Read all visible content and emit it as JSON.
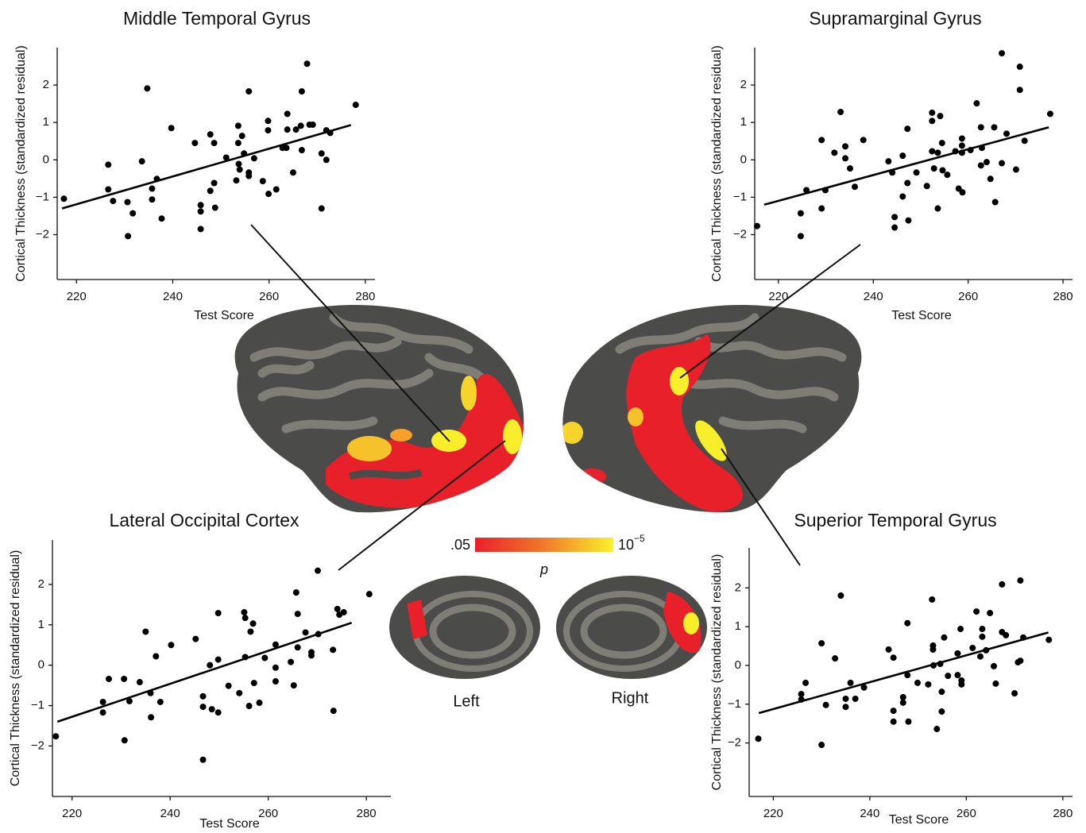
{
  "chart_data": [
    {
      "type": "scatter",
      "title": "Middle Temporal Gyrus",
      "x_label": "Test Score",
      "y_label": "Cortical Thickness (standardized residual)",
      "color": "#000000",
      "xlim": [
        216,
        282
      ],
      "ylim": [
        -3.2,
        3.0
      ],
      "xticks": [
        220,
        240,
        260,
        280
      ],
      "yticks": [
        {
          "value": -2,
          "label": "−2"
        },
        {
          "value": -1,
          "label": "−1"
        },
        0,
        1,
        2
      ],
      "x": [
        217.4,
        226.6,
        226.6,
        227.6,
        230.6,
        230.7,
        231.7,
        233.6,
        234.7,
        235.7,
        235.7,
        236.7,
        237.7,
        239.7,
        244.6,
        245.8,
        245.8,
        245.8,
        247.8,
        247.8,
        248.6,
        248.6,
        248.8,
        251.1,
        253.2,
        253.6,
        253.6,
        253.7,
        253.9,
        254.4,
        254.8,
        255.8,
        255.8,
        255.8,
        256.9,
        258.7,
        259.8,
        259.8,
        259.9,
        261.5,
        262.8,
        263.6,
        263.8,
        263.8,
        265.0,
        265.6,
        266.6,
        266.8,
        266.8,
        267.9,
        268.4,
        269.1,
        270.9,
        270.9,
        271.9,
        271.9,
        272.7,
        278.0
      ],
      "values": [
        -1.04,
        -0.13,
        -0.79,
        -1.1,
        -1.13,
        -2.04,
        -1.43,
        -0.04,
        1.91,
        -0.77,
        -1.06,
        -0.51,
        -1.57,
        0.85,
        0.45,
        -1.21,
        -1.38,
        -1.85,
        0.68,
        -0.83,
        0.45,
        -0.62,
        -1.28,
        0.06,
        -0.55,
        0.91,
        0.45,
        -0.11,
        -0.26,
        0.64,
        0.17,
        1.83,
        -0.34,
        -0.43,
        0.04,
        -0.57,
        1.04,
        0.79,
        -0.91,
        -0.79,
        0.32,
        0.32,
        1.23,
        0.81,
        -0.34,
        0.81,
        0.91,
        1.83,
        0.26,
        2.57,
        0.94,
        0.94,
        0.17,
        -1.3,
        0.0,
        0.79,
        0.72,
        1.47
      ],
      "fit": {
        "x": [
          217,
          277
        ],
        "values": [
          -1.3,
          0.93
        ]
      }
    },
    {
      "type": "scatter",
      "title": "Supramarginal Gyrus",
      "x_label": "Test Score",
      "y_label": "Cortical Thickness (standardized residual)",
      "color": "#000000",
      "xlim": [
        215,
        282
      ],
      "ylim": [
        -3.2,
        3.0
      ],
      "xticks": [
        220,
        240,
        260,
        280
      ],
      "yticks": [
        {
          "value": -2,
          "label": "−2"
        },
        {
          "value": -1,
          "label": "−1"
        },
        0,
        1,
        2
      ],
      "x": [
        215.5,
        224.7,
        224.7,
        225.9,
        229.1,
        229.1,
        229.9,
        231.8,
        233.1,
        234.1,
        234.1,
        235.1,
        236.1,
        237.9,
        243.2,
        244.0,
        244.5,
        244.5,
        246.2,
        246.2,
        247.2,
        247.2,
        247.4,
        249.1,
        251.3,
        252.4,
        252.4,
        252.4,
        252.8,
        253.6,
        253.6,
        254.1,
        254.5,
        254.6,
        255.6,
        257.3,
        258.0,
        258.7,
        258.7,
        258.7,
        258.8,
        260.5,
        261.8,
        262.7,
        262.7,
        262.9,
        263.9,
        264.7,
        265.5,
        265.7,
        267.1,
        267.1,
        268.1,
        270.1,
        270.9,
        270.9,
        271.9,
        277.3
      ],
      "values": [
        -1.77,
        -1.43,
        -2.04,
        -0.81,
        0.53,
        -1.3,
        -0.81,
        0.19,
        1.28,
        0.36,
        0.04,
        -0.23,
        -0.72,
        0.53,
        -0.04,
        -0.34,
        -1.53,
        -1.81,
        0.11,
        -0.98,
        0.83,
        -0.62,
        -1.62,
        -0.34,
        -0.7,
        1.26,
        1.04,
        0.23,
        -0.23,
        0.19,
        -1.3,
        1.17,
        0.45,
        -0.28,
        -0.4,
        0.23,
        -0.77,
        0.57,
        0.38,
        0.19,
        -0.87,
        0.26,
        1.51,
        0.87,
        -0.15,
        0.32,
        -0.06,
        -0.51,
        0.87,
        -1.13,
        2.85,
        -0.09,
        0.7,
        -0.26,
        2.49,
        1.87,
        0.51,
        1.23
      ],
      "fit": {
        "x": [
          217,
          277
        ],
        "values": [
          -1.2,
          0.87
        ]
      }
    },
    {
      "type": "scatter",
      "title": "Lateral Occipital Cortex",
      "x_label": "Test Score",
      "y_label": "Cortical Thickness (standardized residual)",
      "color": "#000000",
      "xlim": [
        216,
        285
      ],
      "ylim": [
        -3.25,
        3.1
      ],
      "xticks": [
        220,
        240,
        260,
        280
      ],
      "yticks": [
        {
          "value": -2,
          "label": "−2"
        },
        {
          "value": -1,
          "label": "−1"
        },
        0,
        1,
        2
      ],
      "x": [
        216.7,
        226.3,
        226.3,
        227.5,
        230.6,
        230.7,
        231.7,
        233.8,
        235.0,
        236.0,
        236.1,
        237.1,
        238.0,
        240.2,
        245.2,
        246.7,
        246.7,
        246.7,
        248.1,
        248.5,
        249.8,
        249.8,
        249.8,
        251.9,
        254.1,
        255.1,
        255.3,
        255.3,
        256.1,
        256.4,
        256.9,
        257.1,
        258.2,
        259.3,
        261.5,
        261.5,
        261.5,
        264.6,
        265.2,
        265.7,
        266.0,
        266.0,
        267.6,
        268.8,
        268.8,
        270.1,
        270.2,
        273.2,
        273.3,
        274.1,
        274.5,
        275.4,
        280.6
      ],
      "values": [
        -1.76,
        -0.91,
        -1.17,
        -0.34,
        -0.34,
        -1.86,
        -0.89,
        -0.42,
        0.83,
        -0.69,
        -1.29,
        0.22,
        -0.91,
        0.5,
        0.65,
        -0.77,
        -1.03,
        -2.34,
        0.0,
        -1.09,
        1.29,
        0.14,
        -1.17,
        -0.51,
        -0.69,
        1.31,
        1.17,
        0.2,
        -1.01,
        0.83,
        1.03,
        -0.44,
        -0.93,
        0.18,
        0.51,
        -0.06,
        -0.4,
        0.08,
        -0.5,
        1.8,
        1.27,
        0.44,
        0.81,
        0.32,
        0.24,
        2.34,
        0.77,
        0.38,
        -1.13,
        1.39,
        1.25,
        1.31,
        1.76
      ],
      "fit": {
        "x": [
          217,
          277
        ],
        "values": [
          -1.4,
          1.05
        ]
      }
    },
    {
      "type": "scatter",
      "title": "Superior Temporal Gyrus",
      "x_label": "Test Score",
      "y_label": "Cortical Thickness (standardized residual)",
      "color": "#000000",
      "xlim": [
        215,
        282
      ],
      "ylim": [
        -3.38,
        3.03
      ],
      "xticks": [
        220,
        240,
        260,
        280
      ],
      "yticks": [
        {
          "value": -2,
          "label": "−2"
        },
        {
          "value": -1,
          "label": "−1"
        },
        0,
        1,
        2
      ],
      "x": [
        216.9,
        225.8,
        225.8,
        226.7,
        230.0,
        230.0,
        230.9,
        232.8,
        234.0,
        235.0,
        235.0,
        236.0,
        237.0,
        238.8,
        243.9,
        244.9,
        244.9,
        244.9,
        246.9,
        246.9,
        247.8,
        247.8,
        248.0,
        249.9,
        252.1,
        252.9,
        253.1,
        253.1,
        253.2,
        253.9,
        254.6,
        254.9,
        254.9,
        255.4,
        256.2,
        258.2,
        258.2,
        258.8,
        259.0,
        259.0,
        261.3,
        262.1,
        262.9,
        263.3,
        263.3,
        264.1,
        264.9,
        265.7,
        266.1,
        267.4,
        267.4,
        268.2,
        270.0,
        270.7,
        271.2,
        271.2,
        271.8,
        277.1
      ],
      "values": [
        -1.89,
        -0.74,
        -0.88,
        -0.45,
        0.57,
        -2.05,
        -1.02,
        0.18,
        1.8,
        -0.86,
        -1.07,
        -0.45,
        -0.86,
        -0.57,
        0.41,
        0.2,
        -1.17,
        -1.45,
        -0.82,
        -0.96,
        1.09,
        -0.25,
        -1.45,
        -0.45,
        -0.49,
        1.7,
        0.51,
        0.41,
        0.0,
        -1.64,
        0.04,
        -0.68,
        -1.19,
        0.72,
        -0.27,
        0.31,
        -0.25,
        0.94,
        -0.39,
        -0.49,
        0.45,
        1.39,
        0.23,
        0.94,
        0.74,
        0.39,
        1.35,
        -0.02,
        -0.47,
        2.09,
        0.86,
        0.78,
        -0.72,
        0.08,
        2.19,
        0.12,
        0.72,
        0.66
      ],
      "fit": {
        "x": [
          217,
          277
        ],
        "values": [
          -1.23,
          0.85
        ]
      }
    }
  ],
  "colorbar": {
    "low_label": ".05",
    "high_label": {
      "base": "10",
      "exponent": "−5"
    },
    "title": "p",
    "colors": [
      "#e8202a",
      "#f07a2a",
      "#f9f22c"
    ]
  },
  "brain_labels": {
    "left": "Left",
    "right": "Right"
  }
}
